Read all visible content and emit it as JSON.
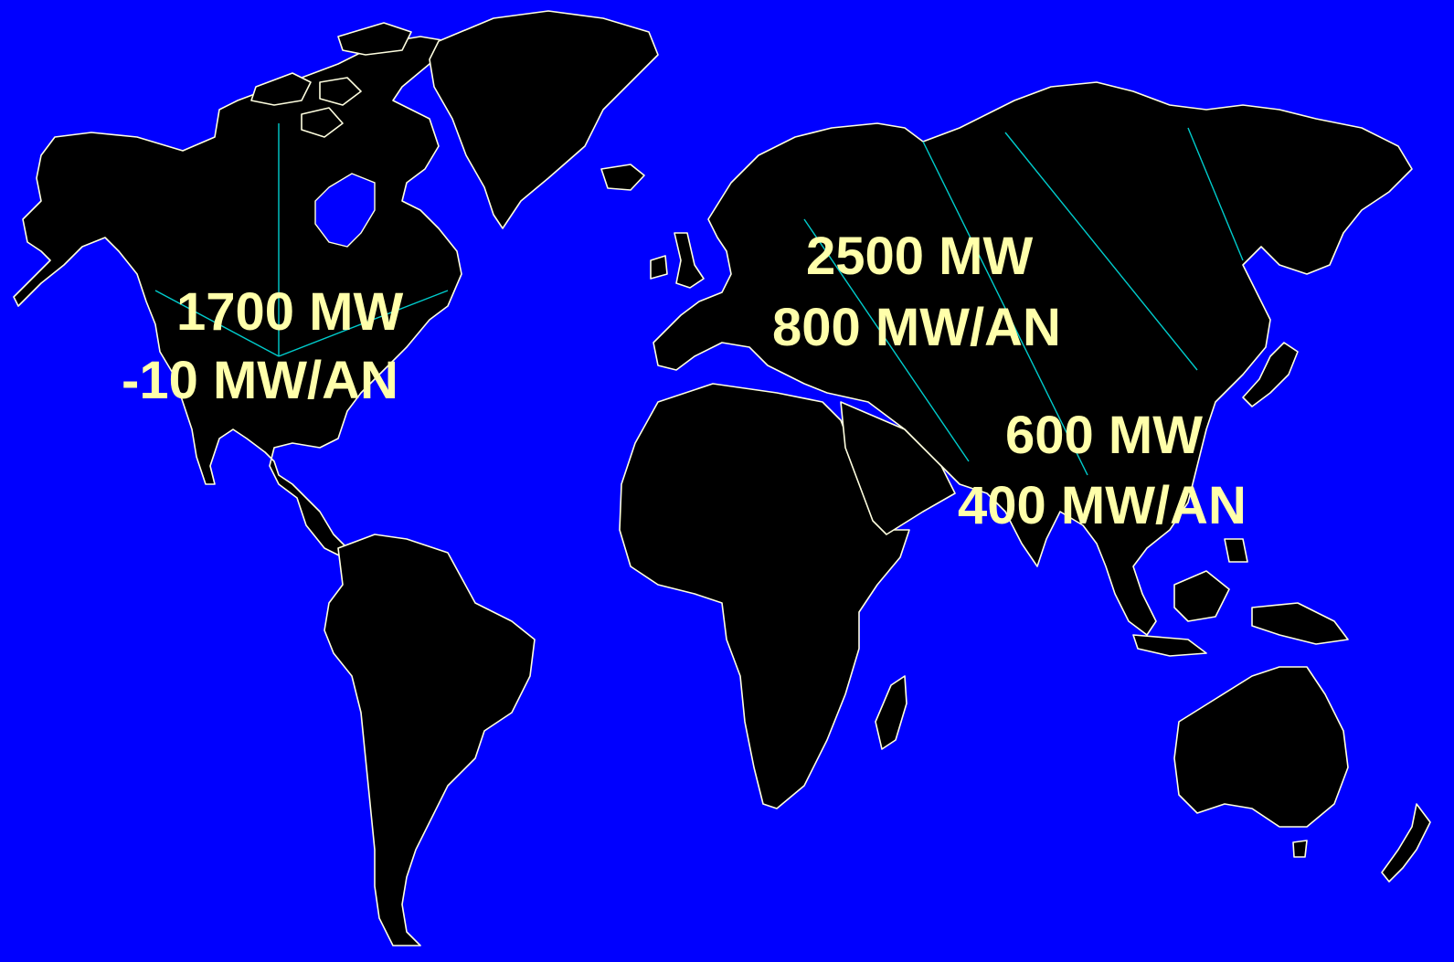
{
  "map": {
    "colors": {
      "ocean": "#0000FF",
      "land": "#000000",
      "coastline": "#FFFFE0",
      "connector_lines": "#00CCCC",
      "label_text": "#FFFFAA"
    },
    "regions": [
      {
        "id": "north-america",
        "power": "1700 MW",
        "rate": "-10 MW/AN"
      },
      {
        "id": "europe-russia",
        "power": "2500 MW",
        "rate": "800 MW/AN"
      },
      {
        "id": "asia",
        "power": "600 MW",
        "rate": "400 MW/AN"
      }
    ]
  }
}
